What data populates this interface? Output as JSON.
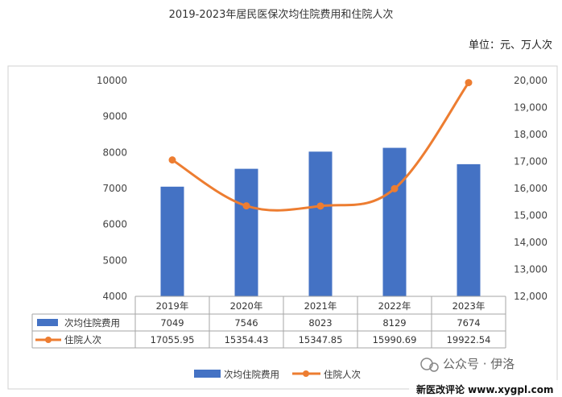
{
  "chart_data": {
    "type": "bar",
    "title": "2019-2023年居民医保次均住院费用和住院人次",
    "unit": "单位：元、万人次",
    "categories": [
      "2019年",
      "2020年",
      "2021年",
      "2022年",
      "2023年"
    ],
    "ylim_left": [
      4000,
      10000
    ],
    "ylim_right": [
      12000,
      20000
    ],
    "left_ticks": [
      "10000",
      "9000",
      "8000",
      "7000",
      "6000",
      "5000",
      "4000"
    ],
    "right_ticks": [
      "20,000",
      "19,000",
      "18,000",
      "17,000",
      "16,000",
      "15,000",
      "14,000",
      "13,000",
      "12,000"
    ],
    "series": [
      {
        "name": "次均住院费用",
        "type": "bar",
        "axis": "left",
        "color": "#4472C4",
        "values": [
          7049,
          7546,
          8023,
          8129,
          7674
        ],
        "labels": [
          "7049",
          "7546",
          "8023",
          "8129",
          "7674"
        ]
      },
      {
        "name": "住院人次",
        "type": "line",
        "axis": "right",
        "color": "#ED7D31",
        "values": [
          17055.95,
          15354.43,
          15347.85,
          15990.69,
          19922.54
        ],
        "labels": [
          "17055.95",
          "15354.43",
          "15347.85",
          "15990.69",
          "19922.54"
        ]
      }
    ],
    "legend_position": "bottom"
  },
  "watermark": {
    "account": "公众号 · 伊洛",
    "site": "新医改评论 www.xygpl.com"
  }
}
